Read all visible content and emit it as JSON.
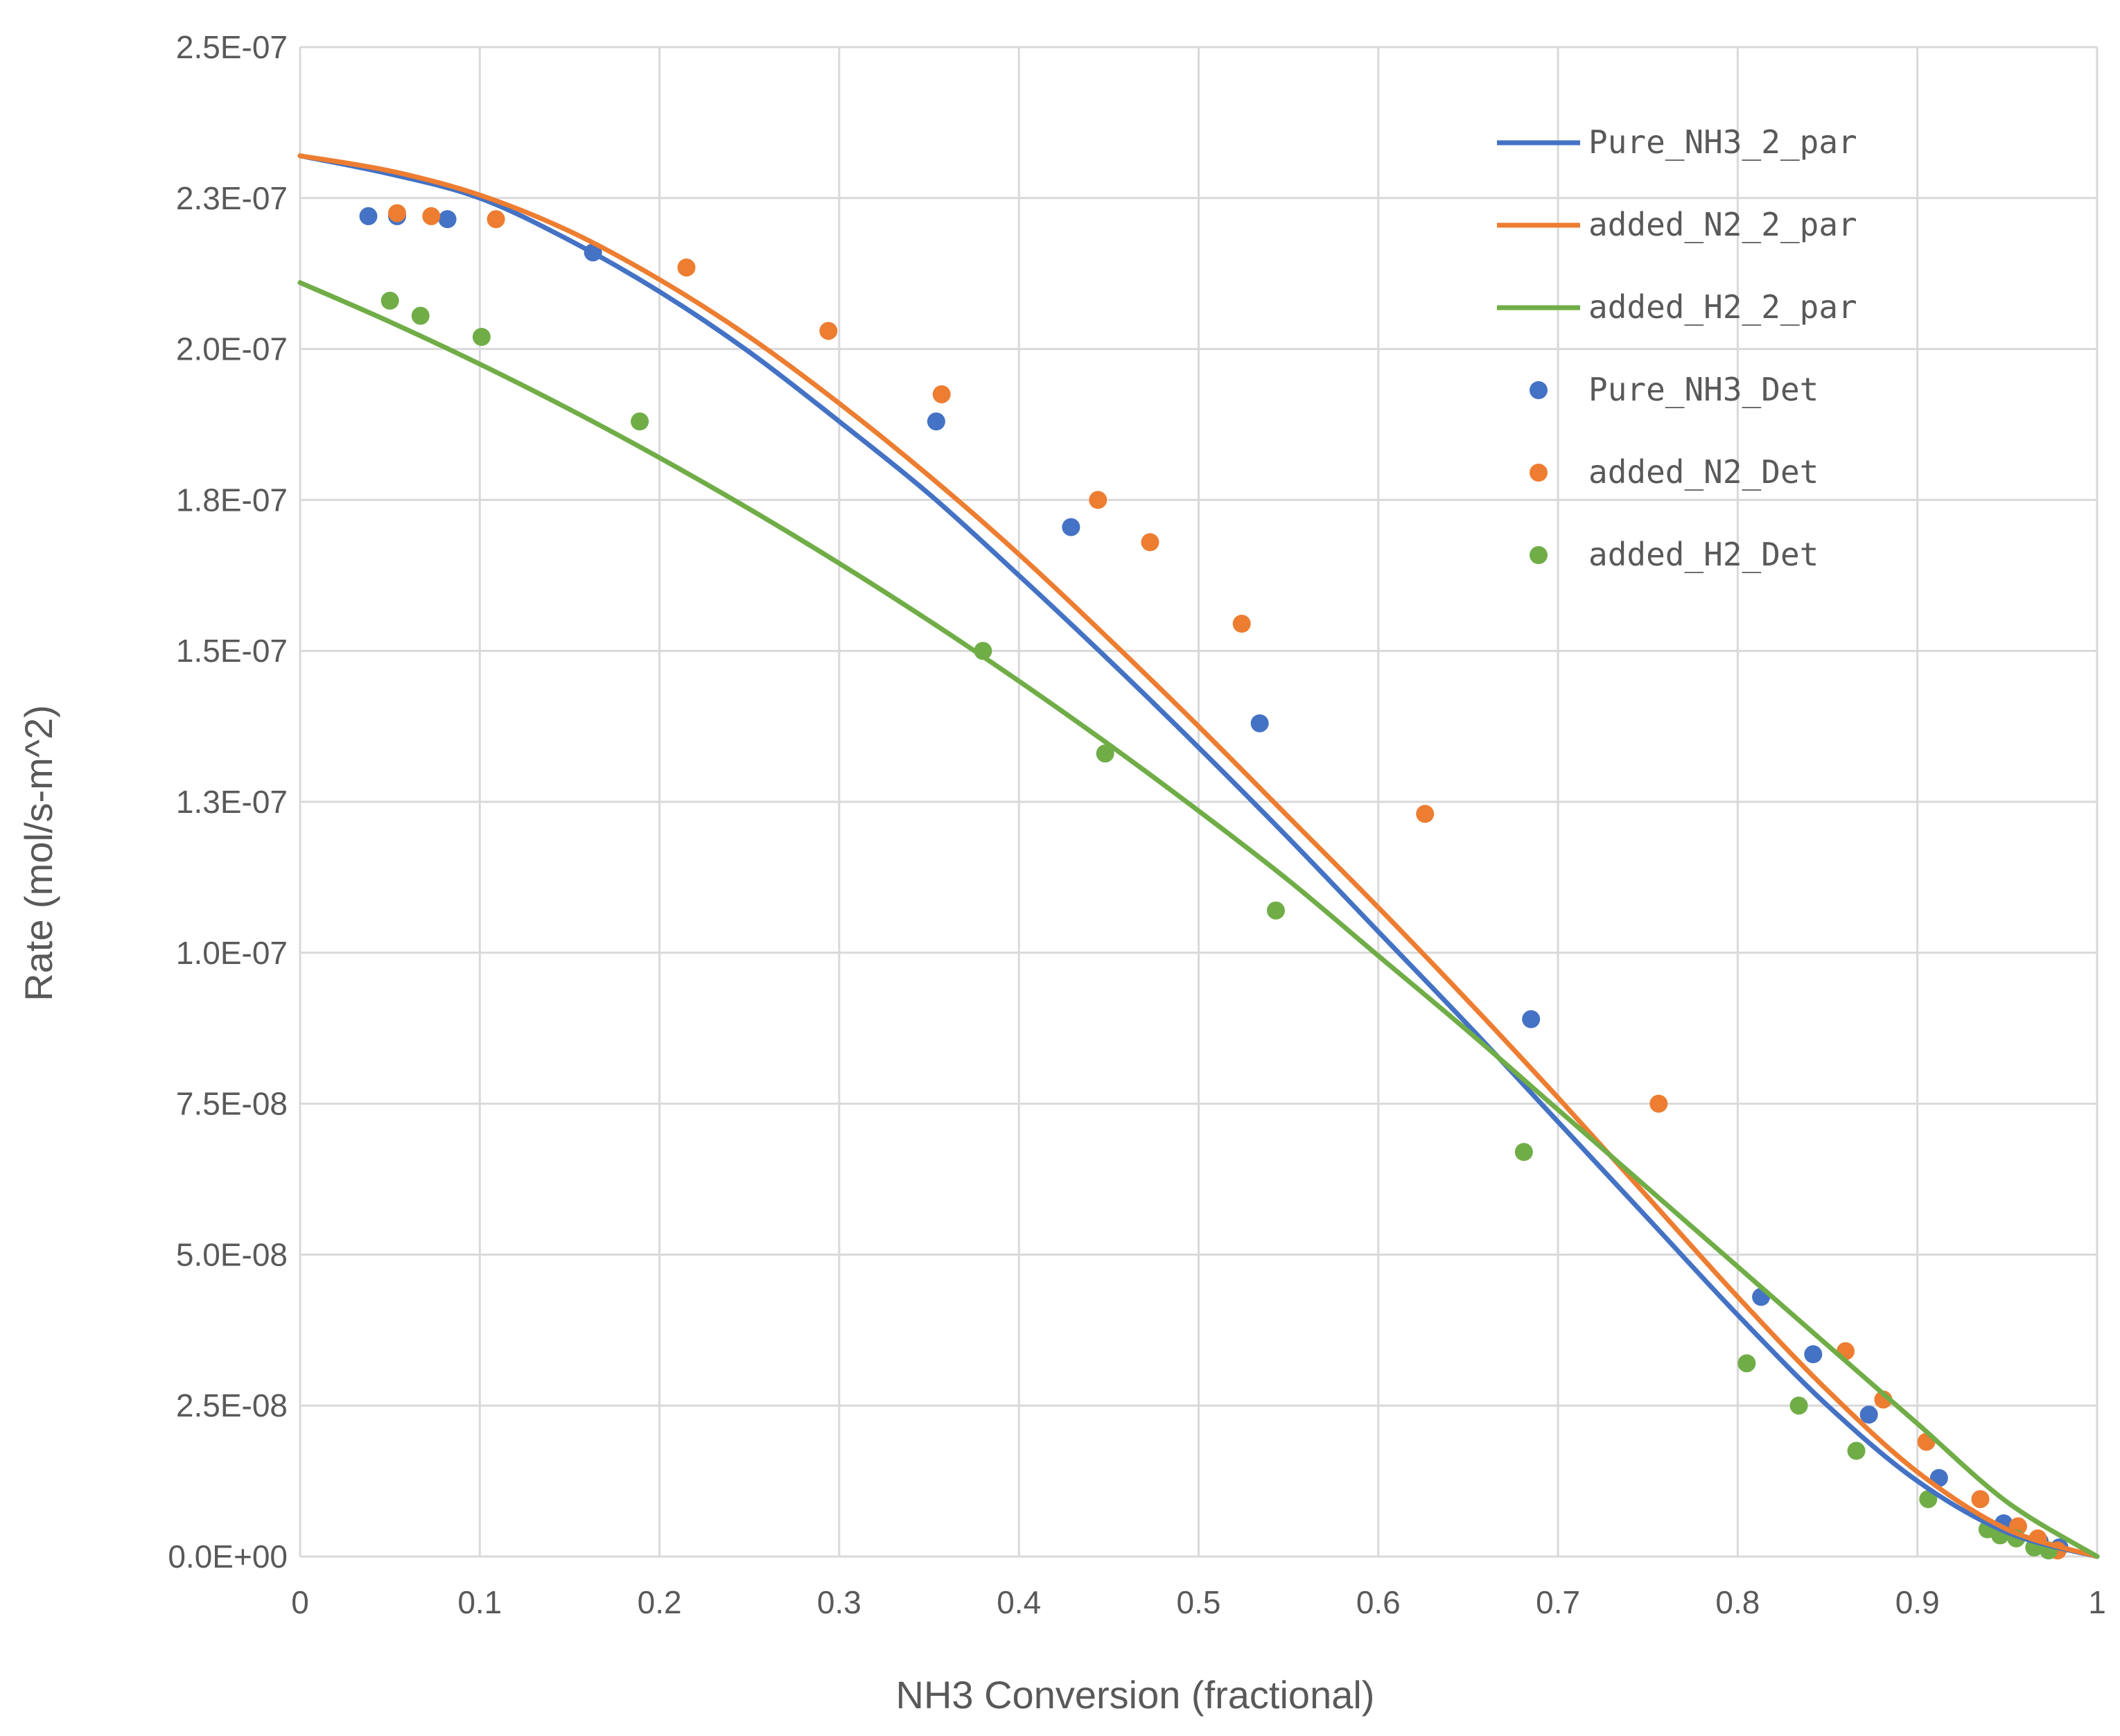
{
  "chart_data": {
    "type": "scatter",
    "title": "",
    "xlabel": "NH3 Conversion (fractional)",
    "ylabel": "Rate (mol/s-m^2)",
    "xlim": [
      0,
      1
    ],
    "ylim": [
      0,
      2.5e-07
    ],
    "grid": true,
    "legend_position": "top-right",
    "x_ticks": [
      "0",
      "0.1",
      "0.2",
      "0.3",
      "0.4",
      "0.5",
      "0.6",
      "0.7",
      "0.8",
      "0.9",
      "1"
    ],
    "y_ticks": [
      "0.0E+00",
      "2.5E-08",
      "5.0E-08",
      "7.5E-08",
      "1.0E-07",
      "1.3E-07",
      "1.5E-07",
      "1.8E-07",
      "2.0E-07",
      "2.3E-07",
      "2.5E-07"
    ],
    "colors": {
      "blue": "#4472C4",
      "orange": "#ED7D31",
      "green": "#70AD47"
    },
    "lines": [
      {
        "name": "Pure_NH3_2_par",
        "color": "#4472C4",
        "x": [
          0,
          0.05,
          0.1,
          0.15,
          0.2,
          0.25,
          0.3,
          0.35,
          0.4,
          0.45,
          0.5,
          0.55,
          0.6,
          0.65,
          0.7,
          0.75,
          0.8,
          0.85,
          0.9,
          0.95,
          1.0
        ],
        "y": [
          2.32e-07,
          2.29e-07,
          2.25e-07,
          2.18e-07,
          2.095e-07,
          1.995e-07,
          1.88e-07,
          1.76e-07,
          1.625e-07,
          1.485e-07,
          1.34e-07,
          1.19e-07,
          1.035e-07,
          8.8e-08,
          7.2e-08,
          5.6e-08,
          4e-08,
          2.5e-08,
          1.25e-08,
          4e-09,
          0
        ]
      },
      {
        "name": "added_N2_2_par",
        "color": "#ED7D31",
        "x": [
          0,
          0.05,
          0.1,
          0.15,
          0.2,
          0.25,
          0.3,
          0.35,
          0.4,
          0.45,
          0.5,
          0.55,
          0.6,
          0.65,
          0.7,
          0.75,
          0.8,
          0.85,
          0.9,
          0.95,
          1.0
        ],
        "y": [
          2.32e-07,
          2.295e-07,
          2.255e-07,
          2.195e-07,
          2.115e-07,
          2.02e-07,
          1.91e-07,
          1.79e-07,
          1.66e-07,
          1.52e-07,
          1.375e-07,
          1.225e-07,
          1.075e-07,
          9.2e-08,
          7.6e-08,
          5.95e-08,
          4.3e-08,
          2.75e-08,
          1.4e-08,
          4.5e-09,
          0
        ]
      },
      {
        "name": "added_H2_2_par",
        "color": "#70AD47",
        "x": [
          0,
          0.05,
          0.1,
          0.15,
          0.2,
          0.25,
          0.3,
          0.35,
          0.4,
          0.45,
          0.5,
          0.55,
          0.6,
          0.65,
          0.7,
          0.75,
          0.8,
          0.85,
          0.9,
          0.95,
          1.0
        ],
        "y": [
          2.11e-07,
          2.045e-07,
          1.975e-07,
          1.9e-07,
          1.82e-07,
          1.735e-07,
          1.645e-07,
          1.55e-07,
          1.45e-07,
          1.345e-07,
          1.235e-07,
          1.12e-07,
          9.95e-08,
          8.7e-08,
          7.4e-08,
          6.1e-08,
          4.8e-08,
          3.5e-08,
          2.2e-08,
          9e-09,
          0
        ]
      }
    ],
    "points": [
      {
        "name": "Pure_NH3_Det",
        "color": "#4472C4",
        "x": [
          0.038,
          0.054,
          0.082,
          0.163,
          0.354,
          0.429,
          0.534,
          0.685,
          0.813,
          0.842,
          0.873,
          0.912,
          0.948,
          0.968,
          0.979
        ],
        "y": [
          2.22e-07,
          2.22e-07,
          2.215e-07,
          2.16e-07,
          1.88e-07,
          1.705e-07,
          1.38e-07,
          8.9e-08,
          4.3e-08,
          3.35e-08,
          2.35e-08,
          1.3e-08,
          5.5e-09,
          2.5e-09,
          1.5e-09
        ]
      },
      {
        "name": "added_N2_Det",
        "color": "#ED7D31",
        "x": [
          0.054,
          0.073,
          0.109,
          0.215,
          0.294,
          0.357,
          0.444,
          0.473,
          0.524,
          0.626,
          0.756,
          0.86,
          0.881,
          0.905,
          0.935,
          0.956,
          0.967,
          0.978
        ],
        "y": [
          2.225e-07,
          2.22e-07,
          2.215e-07,
          2.135e-07,
          2.03e-07,
          1.925e-07,
          1.75e-07,
          1.68e-07,
          1.545e-07,
          1.23e-07,
          7.5e-08,
          3.4e-08,
          2.6e-08,
          1.9e-08,
          9.5e-09,
          5e-09,
          3e-09,
          1e-09
        ]
      },
      {
        "name": "added_H2_Det",
        "color": "#70AD47",
        "x": [
          0.05,
          0.067,
          0.101,
          0.189,
          0.38,
          0.448,
          0.543,
          0.681,
          0.805,
          0.834,
          0.866,
          0.906,
          0.939,
          0.946,
          0.955,
          0.965,
          0.973
        ],
        "y": [
          2.08e-07,
          2.055e-07,
          2.02e-07,
          1.88e-07,
          1.5e-07,
          1.33e-07,
          1.07e-07,
          6.7e-08,
          3.2e-08,
          2.5e-08,
          1.75e-08,
          9.5e-09,
          4.5e-09,
          3.5e-09,
          3e-09,
          1.5e-09,
          1e-09
        ]
      }
    ],
    "legend": [
      {
        "name": "Pure_NH3_2_par",
        "kind": "line",
        "color": "#4472C4"
      },
      {
        "name": "added_N2_2_par",
        "kind": "line",
        "color": "#ED7D31"
      },
      {
        "name": "added_H2_2_par",
        "kind": "line",
        "color": "#70AD47"
      },
      {
        "name": "Pure_NH3_Det",
        "kind": "marker",
        "color": "#4472C4"
      },
      {
        "name": "added_N2_Det",
        "kind": "marker",
        "color": "#ED7D31"
      },
      {
        "name": "added_H2_Det",
        "kind": "marker",
        "color": "#70AD47"
      }
    ]
  }
}
